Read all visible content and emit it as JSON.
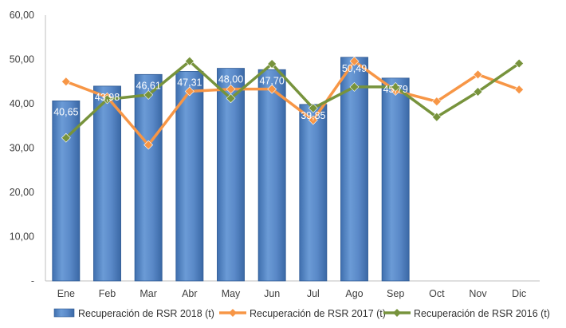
{
  "chart_data": {
    "type": "bar",
    "title": "",
    "xlabel": "",
    "ylabel": "",
    "ylim": [
      0,
      60
    ],
    "ytick_labels": [
      "-",
      "10,00",
      "20,00",
      "30,00",
      "40,00",
      "50,00",
      "60,00"
    ],
    "categories": [
      "Ene",
      "Feb",
      "Mar",
      "Abr",
      "May",
      "Jun",
      "Jul",
      "Ago",
      "Sep",
      "Oct",
      "Nov",
      "Dic"
    ],
    "series": [
      {
        "name": "Recuperación de RSR 2018 (t)",
        "type": "bar",
        "color": "#4F81BD",
        "values": [
          40.65,
          43.98,
          46.61,
          47.31,
          48.0,
          47.7,
          39.85,
          50.49,
          45.79,
          null,
          null,
          null
        ],
        "data_labels": [
          "40,65",
          "43,98",
          "46,61",
          "47,31",
          "48,00",
          "47,70",
          "39,85",
          "50,49",
          "45,79",
          "",
          "",
          ""
        ]
      },
      {
        "name": "Recuperación de RSR 2017 (t)",
        "type": "line",
        "color": "#F79646",
        "values": [
          45.0,
          41.5,
          30.7,
          42.8,
          43.3,
          43.3,
          36.3,
          49.6,
          42.9,
          40.5,
          46.6,
          43.2
        ]
      },
      {
        "name": "Recuperación de RSR 2016 (t)",
        "type": "line",
        "color": "#77933C",
        "values": [
          32.3,
          41.0,
          42.0,
          49.6,
          41.2,
          49.0,
          39.0,
          43.8,
          43.8,
          37.0,
          42.7,
          49.1
        ]
      }
    ],
    "grid": false,
    "legend_position": "bottom"
  }
}
